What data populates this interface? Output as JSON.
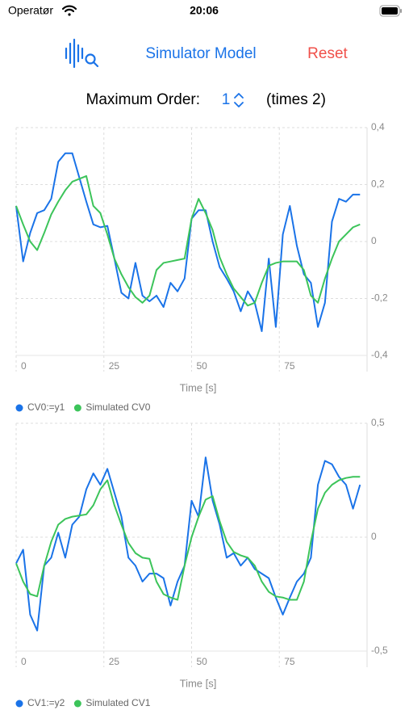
{
  "status_bar": {
    "carrier": "Operatør",
    "time": "20:06"
  },
  "toolbar": {
    "title": "Simulator Model",
    "reset": "Reset"
  },
  "order": {
    "label": "Maximum Order:",
    "value": 1,
    "note": "(times 2)"
  },
  "chart_data": [
    {
      "type": "line",
      "xlabel": "Time [s]",
      "legend": "bottom",
      "grid": true,
      "x": [
        0,
        2,
        4,
        6,
        8,
        10,
        12,
        14,
        16,
        18,
        20,
        22,
        24,
        26,
        28,
        30,
        32,
        34,
        36,
        38,
        40,
        42,
        44,
        46,
        48,
        50,
        52,
        54,
        56,
        58,
        60,
        62,
        64,
        66,
        68,
        70,
        72,
        74,
        76,
        78,
        80,
        82,
        84,
        86,
        88,
        90,
        92,
        94,
        96,
        98
      ],
      "xlim": [
        0,
        100
      ],
      "xticks": [
        0,
        25,
        50,
        75
      ],
      "ylim": [
        -0.4,
        0.4
      ],
      "yticks": [
        {
          "value": 0.4,
          "label": "0,4"
        },
        {
          "value": 0.2,
          "label": "0,2"
        },
        0,
        {
          "value": -0.2,
          "label": "-0,2"
        },
        {
          "value": -0.4,
          "label": "-0,4"
        }
      ],
      "series": [
        {
          "name": "CV0:=y1",
          "color": "#1a73e8",
          "values": [
            0.125,
            -0.07,
            0.03,
            0.1,
            0.11,
            0.15,
            0.28,
            0.31,
            0.31,
            0.225,
            0.14,
            0.06,
            0.05,
            0.055,
            -0.06,
            -0.18,
            -0.2,
            -0.075,
            -0.19,
            -0.21,
            -0.19,
            -0.23,
            -0.145,
            -0.175,
            -0.13,
            0.08,
            0.11,
            0.11,
            0,
            -0.09,
            -0.13,
            -0.175,
            -0.245,
            -0.175,
            -0.215,
            -0.315,
            -0.06,
            -0.3,
            0.025,
            0.125,
            -0.015,
            -0.115,
            -0.145,
            -0.3,
            -0.215,
            0.07,
            0.15,
            0.14,
            0.165,
            0.165
          ]
        },
        {
          "name": "Simulated CV0",
          "color": "#3cc45a",
          "values": [
            0.125,
            0.06,
            0,
            -0.03,
            0.03,
            0.095,
            0.14,
            0.18,
            0.21,
            0.22,
            0.23,
            0.125,
            0.1,
            0.025,
            -0.06,
            -0.115,
            -0.16,
            -0.195,
            -0.215,
            -0.19,
            -0.1,
            -0.075,
            -0.07,
            -0.065,
            -0.06,
            0.08,
            0.15,
            0.1,
            0.04,
            -0.055,
            -0.115,
            -0.165,
            -0.195,
            -0.225,
            -0.215,
            -0.145,
            -0.085,
            -0.075,
            -0.07,
            -0.07,
            -0.07,
            -0.1,
            -0.19,
            -0.215,
            -0.13,
            -0.06,
            0,
            0.025,
            0.05,
            0.06
          ]
        }
      ]
    },
    {
      "type": "line",
      "xlabel": "Time [s]",
      "legend": "bottom",
      "grid": true,
      "x": [
        0,
        2,
        4,
        6,
        8,
        10,
        12,
        14,
        16,
        18,
        20,
        22,
        24,
        26,
        28,
        30,
        32,
        34,
        36,
        38,
        40,
        42,
        44,
        46,
        48,
        50,
        52,
        54,
        56,
        58,
        60,
        62,
        64,
        66,
        68,
        70,
        72,
        74,
        76,
        78,
        80,
        82,
        84,
        86,
        88,
        90,
        92,
        94,
        96,
        98
      ],
      "xlim": [
        0,
        100
      ],
      "xticks": [
        0,
        25,
        50,
        75
      ],
      "ylim": [
        -0.5,
        0.5
      ],
      "yticks": [
        {
          "value": 0.5,
          "label": "0,5"
        },
        0,
        {
          "value": -0.5,
          "label": "-0,5"
        }
      ],
      "series": [
        {
          "name": "CV1:=y2",
          "color": "#1a73e8",
          "values": [
            -0.115,
            -0.055,
            -0.34,
            -0.41,
            -0.125,
            -0.09,
            0.02,
            -0.09,
            0.055,
            0.09,
            0.21,
            0.28,
            0.23,
            0.3,
            0.195,
            0.09,
            -0.09,
            -0.125,
            -0.195,
            -0.16,
            -0.16,
            -0.18,
            -0.3,
            -0.195,
            -0.125,
            0.16,
            0.09,
            0.35,
            0.16,
            0.055,
            -0.09,
            -0.07,
            -0.125,
            -0.09,
            -0.14,
            -0.16,
            -0.18,
            -0.265,
            -0.34,
            -0.265,
            -0.195,
            -0.16,
            -0.09,
            0.23,
            0.335,
            0.32,
            0.265,
            0.23,
            0.125,
            0.23
          ]
        },
        {
          "name": "Simulated CV1",
          "color": "#3cc45a",
          "values": [
            -0.115,
            -0.195,
            -0.25,
            -0.26,
            -0.125,
            -0.02,
            0.055,
            0.08,
            0.09,
            0.095,
            0.1,
            0.14,
            0.21,
            0.25,
            0.14,
            0.055,
            -0.025,
            -0.07,
            -0.09,
            -0.095,
            -0.195,
            -0.25,
            -0.265,
            -0.275,
            -0.125,
            0,
            0.09,
            0.165,
            0.18,
            0.07,
            -0.02,
            -0.065,
            -0.08,
            -0.09,
            -0.125,
            -0.195,
            -0.24,
            -0.26,
            -0.265,
            -0.275,
            -0.275,
            -0.195,
            -0.02,
            0.125,
            0.195,
            0.23,
            0.25,
            0.26,
            0.265,
            0.265
          ]
        }
      ]
    }
  ]
}
